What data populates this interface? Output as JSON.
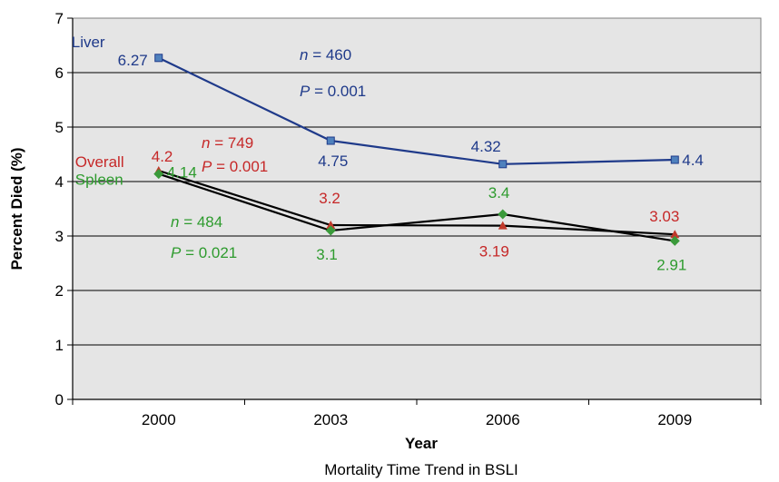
{
  "chart_data": {
    "type": "line",
    "categories": [
      "2000",
      "2003",
      "2006",
      "2009"
    ],
    "xlabel": "Year",
    "ylabel": "Percent Died (%)",
    "caption": "Mortality Time Trend in BSLI",
    "ylim": [
      0,
      7
    ],
    "yticks": [
      "0",
      "1",
      "2",
      "3",
      "4",
      "5",
      "6",
      "7"
    ],
    "grid": true,
    "background_color": "#e5e5e5",
    "series": [
      {
        "name": "Liver",
        "values": [
          6.27,
          4.75,
          4.32,
          4.4
        ],
        "value_labels": [
          "6.27",
          "4.75",
          "4.32",
          "4.4"
        ],
        "marker": "square",
        "line_color": "#1f3a8a",
        "marker_color": "#4f81bd",
        "label_color": "#1f3a8a",
        "annotation": {
          "n": "460",
          "p": "0.001"
        }
      },
      {
        "name": "Overall",
        "values": [
          4.2,
          3.2,
          3.19,
          3.03
        ],
        "value_labels": [
          "4.2",
          "3.2",
          "3.19",
          "3.03"
        ],
        "marker": "triangle",
        "line_color": "#000000",
        "marker_color": "#c0392b",
        "label_color": "#c62828",
        "annotation": {
          "n": "749",
          "p": "0.001"
        }
      },
      {
        "name": "Spleen",
        "values": [
          4.14,
          3.1,
          3.4,
          2.91
        ],
        "value_labels": [
          "4.14",
          "3.1",
          "3.4",
          "2.91"
        ],
        "marker": "diamond",
        "line_color": "#000000",
        "marker_color": "#3a9a3a",
        "label_color": "#2e9b2e",
        "annotation": {
          "n": "484",
          "p": "0.021"
        }
      }
    ]
  }
}
